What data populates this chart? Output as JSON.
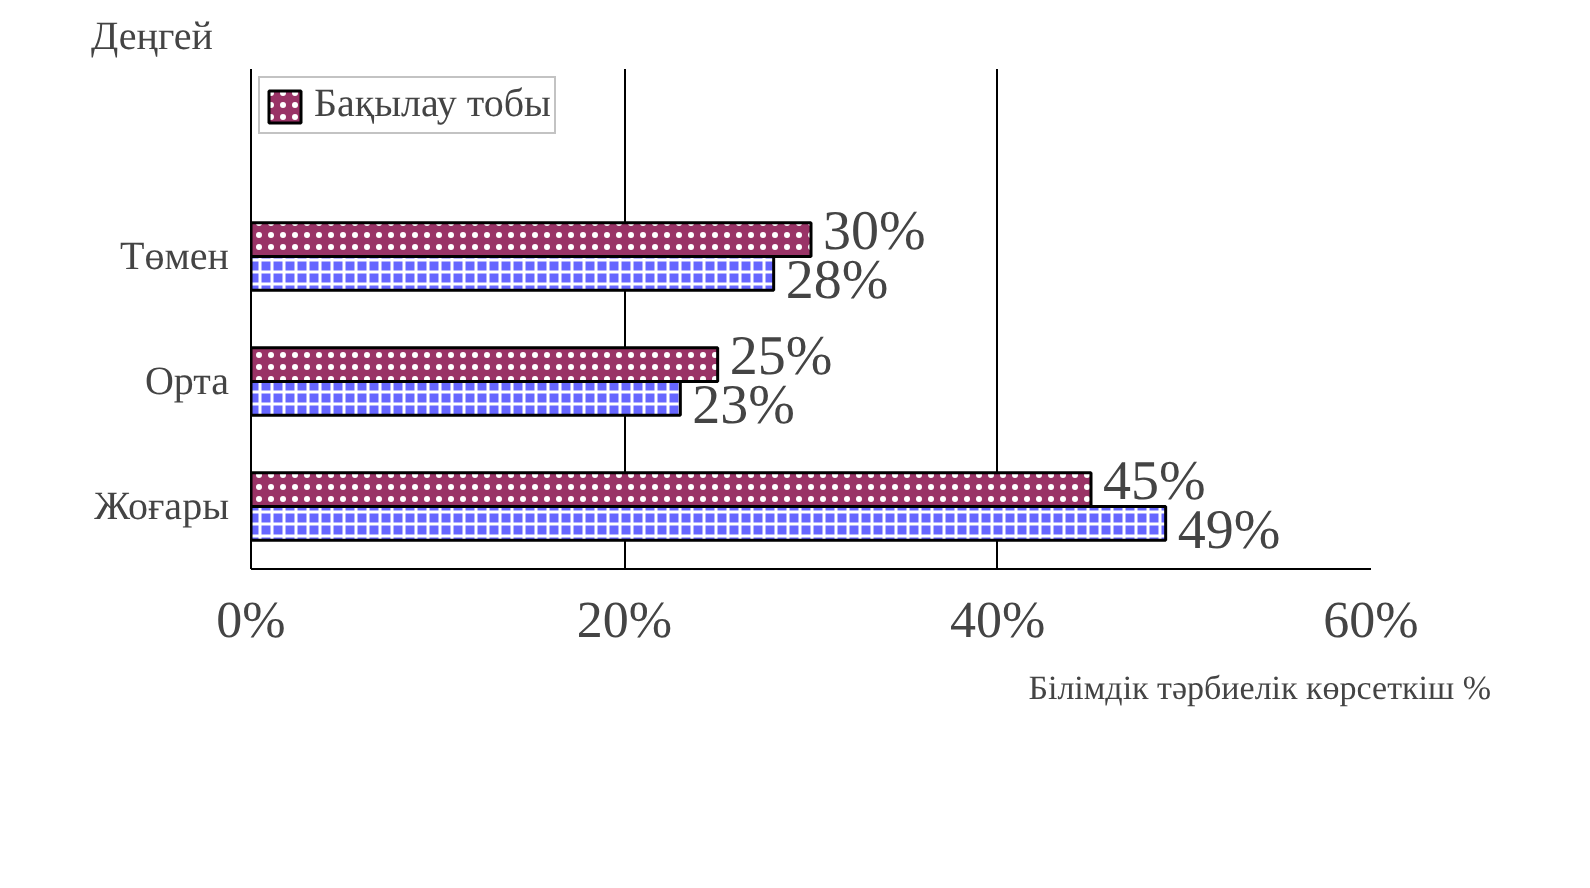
{
  "chart_data": {
    "type": "bar",
    "orientation": "horizontal",
    "xlabel": "Білімдік тәрбиелік көрсеткіш %",
    "ylabel": "Деңгей",
    "categories": [
      "Төмен",
      "Орта",
      "Жоғары"
    ],
    "series": [
      {
        "name": "Бақылау тобы",
        "color": "#993366",
        "values": [
          30,
          25,
          45
        ]
      },
      {
        "color": "#6666ff",
        "values": [
          28,
          23,
          49
        ]
      }
    ],
    "value_labels": [
      [
        "30%",
        "25%",
        "45%"
      ],
      [
        "28%",
        "23%",
        "49%"
      ]
    ],
    "xlim": [
      0,
      60
    ],
    "xticks": [
      {
        "value": 0,
        "label": "0%"
      },
      {
        "value": 20,
        "label": "20%"
      },
      {
        "value": 40,
        "label": "40%"
      },
      {
        "value": 60,
        "label": "60%"
      }
    ],
    "grid": "x",
    "legend": "top left"
  }
}
